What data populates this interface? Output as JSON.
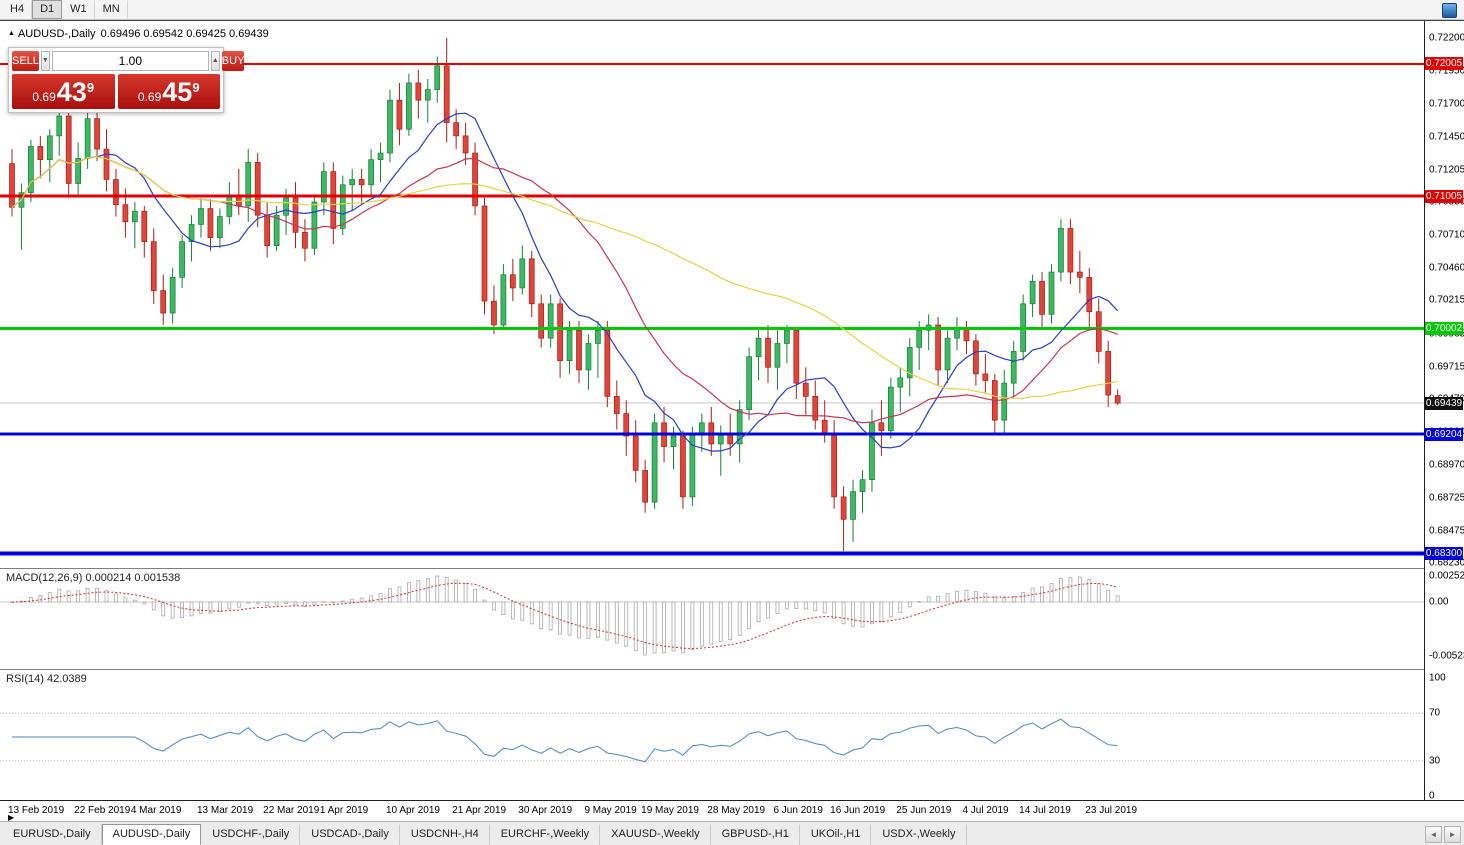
{
  "toolbar": {
    "timeframes": [
      {
        "label": "H4",
        "active": false
      },
      {
        "label": "D1",
        "active": true
      },
      {
        "label": "W1",
        "active": false
      },
      {
        "label": "MN",
        "active": false
      }
    ]
  },
  "chart_header": {
    "symbol_title": "AUDUSD-,Daily",
    "ohlc": "0.69496 0.69542 0.69425 0.69439"
  },
  "trade_panel": {
    "sell_label": "SELL",
    "buy_label": "BUY",
    "volume": "1.00",
    "sell_price": {
      "prefix": "0.69",
      "big": "43",
      "sup": "9"
    },
    "buy_price": {
      "prefix": "0.69",
      "big": "45",
      "sup": "9"
    }
  },
  "indicators": {
    "macd_label": "MACD(12,26,9) 0.000214 0.001538",
    "rsi_label": "RSI(14) 42.0389"
  },
  "axis": {
    "price_ticks": [
      "0.72200",
      "0.71950",
      "0.71700",
      "0.71450",
      "0.71205",
      "0.70960",
      "0.70710",
      "0.70460",
      "0.70215",
      "0.69965",
      "0.69715",
      "0.69470",
      "0.69220",
      "0.68970",
      "0.68725",
      "0.68475",
      "0.68230"
    ],
    "macd_ticks": [
      {
        "text": "0.002522",
        "value": 0.002522
      },
      {
        "text": "0.00",
        "value": 0
      },
      {
        "text": "-0.005234",
        "value": -0.005234
      }
    ],
    "rsi_ticks": [
      {
        "text": "100",
        "value": 100
      },
      {
        "text": "70",
        "value": 70
      },
      {
        "text": "30",
        "value": 30
      },
      {
        "text": "0",
        "value": 0
      }
    ],
    "current_price": {
      "text": "0.69439",
      "value": 0.69439
    }
  },
  "icons": {
    "symbol_marker": "▲",
    "spinner_down": "▼",
    "spinner_up": "▲",
    "tab_left": "◄",
    "tab_right": "►",
    "scroll_marker": "▶"
  },
  "tabs": {
    "items": [
      {
        "label": "EURUSD-,Daily",
        "active": false
      },
      {
        "label": "AUDUSD-,Daily",
        "active": true
      },
      {
        "label": "USDCHF-,Daily",
        "active": false
      },
      {
        "label": "USDCAD-,Daily",
        "active": false
      },
      {
        "label": "USDCNH-,H4",
        "active": false
      },
      {
        "label": "EURCHF-,Weekly",
        "active": false
      },
      {
        "label": "XAUUSD-,Weekly",
        "active": false
      },
      {
        "label": "GBPUSD-,H1",
        "active": false
      },
      {
        "label": "UKOil-,H1",
        "active": false
      },
      {
        "label": "USDX-,Weekly",
        "active": false
      }
    ]
  },
  "colors": {
    "bull_fill": "#3db863",
    "bull_border": "#1e7a3a",
    "bear_fill": "#e2443a",
    "bear_border": "#9c241c",
    "bid_line": "#c9c9c9",
    "ma_fast": "#2b3fbf",
    "ma_mid": "#c03a50",
    "ma_slow": "#e3d24b",
    "macd_signal": "#d03030",
    "macd_bar": "#a9a9a9",
    "rsi_line": "#4d86c0",
    "current_badge": "#111111"
  },
  "chart_data": {
    "type": "candlestick",
    "title": "AUDUSD-,Daily",
    "symbol": "AUDUSD",
    "timeframe": "Daily",
    "last_ohlc": {
      "open": 0.69496,
      "high": 0.69542,
      "low": 0.69425,
      "close": 0.69439
    },
    "y_axis": {
      "min_visible": 0.6823,
      "max_visible": 0.722
    },
    "x_labels": [
      {
        "text": "13 Feb 2019",
        "index": 0
      },
      {
        "text": "22 Feb 2019",
        "index": 7
      },
      {
        "text": "4 Mar 2019",
        "index": 13
      },
      {
        "text": "13 Mar 2019",
        "index": 20
      },
      {
        "text": "22 Mar 2019",
        "index": 27
      },
      {
        "text": "1 Apr 2019",
        "index": 33
      },
      {
        "text": "10 Apr 2019",
        "index": 40
      },
      {
        "text": "21 Apr 2019",
        "index": 47
      },
      {
        "text": "30 Apr 2019",
        "index": 54
      },
      {
        "text": "9 May 2019",
        "index": 61
      },
      {
        "text": "19 May 2019",
        "index": 67
      },
      {
        "text": "28 May 2019",
        "index": 74
      },
      {
        "text": "6 Jun 2019",
        "index": 81
      },
      {
        "text": "16 Jun 2019",
        "index": 87
      },
      {
        "text": "25 Jun 2019",
        "index": 94
      },
      {
        "text": "4 Jul 2019",
        "index": 101
      },
      {
        "text": "14 Jul 2019",
        "index": 107
      },
      {
        "text": "23 Jul 2019",
        "index": 114
      }
    ],
    "levels": [
      {
        "value": 0.72005,
        "label": "0.72005",
        "color": "#e00000",
        "width": 2
      },
      {
        "value": 0.71005,
        "label": "0.71005",
        "color": "#e00000",
        "width": 3
      },
      {
        "value": 0.70002,
        "label": "0.70002",
        "color": "#00c800",
        "width": 3
      },
      {
        "value": 0.69204,
        "label": "0.69204",
        "color": "#0000d8",
        "width": 3
      },
      {
        "value": 0.683,
        "label": "0.68300",
        "color": "#0000d8",
        "width": 4
      }
    ],
    "moving_averages": [
      {
        "period": 10,
        "color": "#2b3fbf"
      },
      {
        "period": 21,
        "color": "#c03a50"
      },
      {
        "period": 50,
        "color": "#e3d24b"
      }
    ],
    "macd": {
      "fast": 12,
      "slow": 26,
      "signal": 9,
      "main_value": 0.000214,
      "signal_value": 0.001538
    },
    "rsi": {
      "period": 14,
      "value": 42.0389,
      "levels": [
        70,
        30
      ]
    },
    "candles": [
      [
        0.7125,
        0.7136,
        0.7085,
        0.7092
      ],
      [
        0.7092,
        0.711,
        0.706,
        0.7103
      ],
      [
        0.7103,
        0.7143,
        0.7096,
        0.7138
      ],
      [
        0.7138,
        0.7146,
        0.7114,
        0.7128
      ],
      [
        0.7128,
        0.7151,
        0.7111,
        0.7146
      ],
      [
        0.7146,
        0.7168,
        0.7131,
        0.7161
      ],
      [
        0.7161,
        0.7168,
        0.7099,
        0.711
      ],
      [
        0.711,
        0.7141,
        0.7101,
        0.7129
      ],
      [
        0.7129,
        0.7167,
        0.7121,
        0.7159
      ],
      [
        0.7159,
        0.7166,
        0.7127,
        0.7136
      ],
      [
        0.7136,
        0.7151,
        0.7104,
        0.7113
      ],
      [
        0.7113,
        0.7121,
        0.7085,
        0.7094
      ],
      [
        0.7094,
        0.7106,
        0.7069,
        0.7081
      ],
      [
        0.7081,
        0.7096,
        0.7061,
        0.7089
      ],
      [
        0.7089,
        0.7093,
        0.7054,
        0.7066
      ],
      [
        0.7066,
        0.7076,
        0.7019,
        0.7029
      ],
      [
        0.7029,
        0.7041,
        0.7003,
        0.7012
      ],
      [
        0.7012,
        0.7046,
        0.7004,
        0.7039
      ],
      [
        0.7039,
        0.7071,
        0.7031,
        0.7066
      ],
      [
        0.7066,
        0.7086,
        0.7051,
        0.7079
      ],
      [
        0.7079,
        0.7099,
        0.7069,
        0.7091
      ],
      [
        0.7091,
        0.7098,
        0.7059,
        0.7069
      ],
      [
        0.7069,
        0.7091,
        0.7061,
        0.7085
      ],
      [
        0.7085,
        0.7111,
        0.7079,
        0.7101
      ],
      [
        0.7101,
        0.7121,
        0.7086,
        0.7093
      ],
      [
        0.7093,
        0.7136,
        0.7081,
        0.7126
      ],
      [
        0.7126,
        0.7133,
        0.7077,
        0.7086
      ],
      [
        0.7086,
        0.7096,
        0.7054,
        0.7063
      ],
      [
        0.7063,
        0.7093,
        0.7059,
        0.7086
      ],
      [
        0.7086,
        0.7106,
        0.7071,
        0.7099
      ],
      [
        0.7099,
        0.7111,
        0.7061,
        0.7073
      ],
      [
        0.7073,
        0.7083,
        0.7051,
        0.7061
      ],
      [
        0.7061,
        0.7101,
        0.7056,
        0.7096
      ],
      [
        0.7096,
        0.7126,
        0.7086,
        0.7119
      ],
      [
        0.7119,
        0.7126,
        0.7064,
        0.7076
      ],
      [
        0.7076,
        0.7116,
        0.7071,
        0.7109
      ],
      [
        0.7109,
        0.7121,
        0.7089,
        0.7113
      ],
      [
        0.7113,
        0.7121,
        0.7094,
        0.7109
      ],
      [
        0.7109,
        0.7136,
        0.7101,
        0.7128
      ],
      [
        0.7128,
        0.7141,
        0.7111,
        0.7133
      ],
      [
        0.7133,
        0.7181,
        0.7126,
        0.7173
      ],
      [
        0.7173,
        0.7186,
        0.7139,
        0.7151
      ],
      [
        0.7151,
        0.7193,
        0.7146,
        0.7186
      ],
      [
        0.7186,
        0.7196,
        0.7159,
        0.7173
      ],
      [
        0.7173,
        0.7189,
        0.7156,
        0.7181
      ],
      [
        0.7181,
        0.7206,
        0.7171,
        0.7199
      ],
      [
        0.7199,
        0.722,
        0.7141,
        0.7156
      ],
      [
        0.7156,
        0.7166,
        0.7136,
        0.7146
      ],
      [
        0.7146,
        0.7156,
        0.7124,
        0.7133
      ],
      [
        0.7133,
        0.7141,
        0.7086,
        0.7093
      ],
      [
        0.7093,
        0.7099,
        0.7011,
        0.7021
      ],
      [
        0.7021,
        0.7033,
        0.6996,
        0.7003
      ],
      [
        0.7003,
        0.7049,
        0.6999,
        0.7041
      ],
      [
        0.7041,
        0.7053,
        0.7021,
        0.7031
      ],
      [
        0.7031,
        0.7063,
        0.7026,
        0.7053
      ],
      [
        0.7053,
        0.7059,
        0.7009,
        0.7019
      ],
      [
        0.7019,
        0.7026,
        0.6986,
        0.6993
      ],
      [
        0.6993,
        0.7026,
        0.6986,
        0.7019
      ],
      [
        0.7019,
        0.7023,
        0.6963,
        0.6976
      ],
      [
        0.6976,
        0.7006,
        0.6966,
        0.6999
      ],
      [
        0.6999,
        0.7006,
        0.6959,
        0.6969
      ],
      [
        0.6969,
        0.6996,
        0.6954,
        0.6989
      ],
      [
        0.6989,
        0.7006,
        0.6963,
        0.6999
      ],
      [
        0.6999,
        0.7006,
        0.6941,
        0.6949
      ],
      [
        0.6949,
        0.6961,
        0.6924,
        0.6936
      ],
      [
        0.6936,
        0.6946,
        0.6904,
        0.6919
      ],
      [
        0.6919,
        0.6931,
        0.6884,
        0.6893
      ],
      [
        0.6893,
        0.6901,
        0.6861,
        0.6869
      ],
      [
        0.6869,
        0.6936,
        0.6864,
        0.6929
      ],
      [
        0.6929,
        0.6941,
        0.6899,
        0.6911
      ],
      [
        0.6911,
        0.6926,
        0.6894,
        0.6919
      ],
      [
        0.6919,
        0.6923,
        0.6864,
        0.6873
      ],
      [
        0.6873,
        0.6926,
        0.6866,
        0.6921
      ],
      [
        0.6921,
        0.6936,
        0.6907,
        0.6929
      ],
      [
        0.6929,
        0.6941,
        0.6904,
        0.6913
      ],
      [
        0.6913,
        0.6927,
        0.6889,
        0.6921
      ],
      [
        0.6921,
        0.6936,
        0.6904,
        0.6913
      ],
      [
        0.6913,
        0.6946,
        0.6899,
        0.6939
      ],
      [
        0.6939,
        0.6986,
        0.6931,
        0.6979
      ],
      [
        0.6979,
        0.7001,
        0.6961,
        0.6993
      ],
      [
        0.6993,
        0.7003,
        0.6959,
        0.6971
      ],
      [
        0.6971,
        0.6999,
        0.6954,
        0.6989
      ],
      [
        0.6989,
        0.7003,
        0.6974,
        0.6999
      ],
      [
        0.6999,
        0.7001,
        0.6947,
        0.6959
      ],
      [
        0.6959,
        0.6971,
        0.6934,
        0.6949
      ],
      [
        0.6949,
        0.6961,
        0.6924,
        0.6931
      ],
      [
        0.6931,
        0.6946,
        0.6914,
        0.6921
      ],
      [
        0.6921,
        0.6931,
        0.6864,
        0.6873
      ],
      [
        0.6873,
        0.6881,
        0.6832,
        0.6856
      ],
      [
        0.6856,
        0.6886,
        0.6839,
        0.6877
      ],
      [
        0.6877,
        0.6893,
        0.6861,
        0.6886
      ],
      [
        0.6886,
        0.6939,
        0.6877,
        0.6929
      ],
      [
        0.6929,
        0.6946,
        0.6904,
        0.6923
      ],
      [
        0.6923,
        0.6963,
        0.6917,
        0.6956
      ],
      [
        0.6956,
        0.6971,
        0.6937,
        0.6963
      ],
      [
        0.6963,
        0.6993,
        0.6949,
        0.6986
      ],
      [
        0.6986,
        0.7006,
        0.6969,
        0.6999
      ],
      [
        0.6999,
        0.7011,
        0.6984,
        0.7003
      ],
      [
        0.7003,
        0.7009,
        0.6957,
        0.6969
      ],
      [
        0.6969,
        0.6999,
        0.6959,
        0.6993
      ],
      [
        0.6993,
        0.7009,
        0.6984,
        0.7001
      ],
      [
        0.7001,
        0.7006,
        0.6981,
        0.6991
      ],
      [
        0.6991,
        0.6996,
        0.6957,
        0.6966
      ],
      [
        0.6966,
        0.6981,
        0.6951,
        0.6961
      ],
      [
        0.6961,
        0.6966,
        0.69215,
        0.6931
      ],
      [
        0.6931,
        0.6969,
        0.69205,
        0.6959
      ],
      [
        0.6959,
        0.6991,
        0.6949,
        0.6983
      ],
      [
        0.6983,
        0.7026,
        0.6976,
        0.7019
      ],
      [
        0.7019,
        0.7041,
        0.7009,
        0.7036
      ],
      [
        0.7036,
        0.7043,
        0.6999,
        0.7011
      ],
      [
        0.7011,
        0.7049,
        0.7004,
        0.7043
      ],
      [
        0.7043,
        0.7083,
        0.7036,
        0.7076
      ],
      [
        0.7076,
        0.7083,
        0.7034,
        0.7043
      ],
      [
        0.7043,
        0.7059,
        0.7027,
        0.7039
      ],
      [
        0.7039,
        0.7046,
        0.6999,
        0.7013
      ],
      [
        0.7013,
        0.7023,
        0.6974,
        0.6983
      ],
      [
        0.6983,
        0.6991,
        0.6941,
        0.695
      ],
      [
        0.69496,
        0.69542,
        0.69425,
        0.69439
      ]
    ]
  }
}
